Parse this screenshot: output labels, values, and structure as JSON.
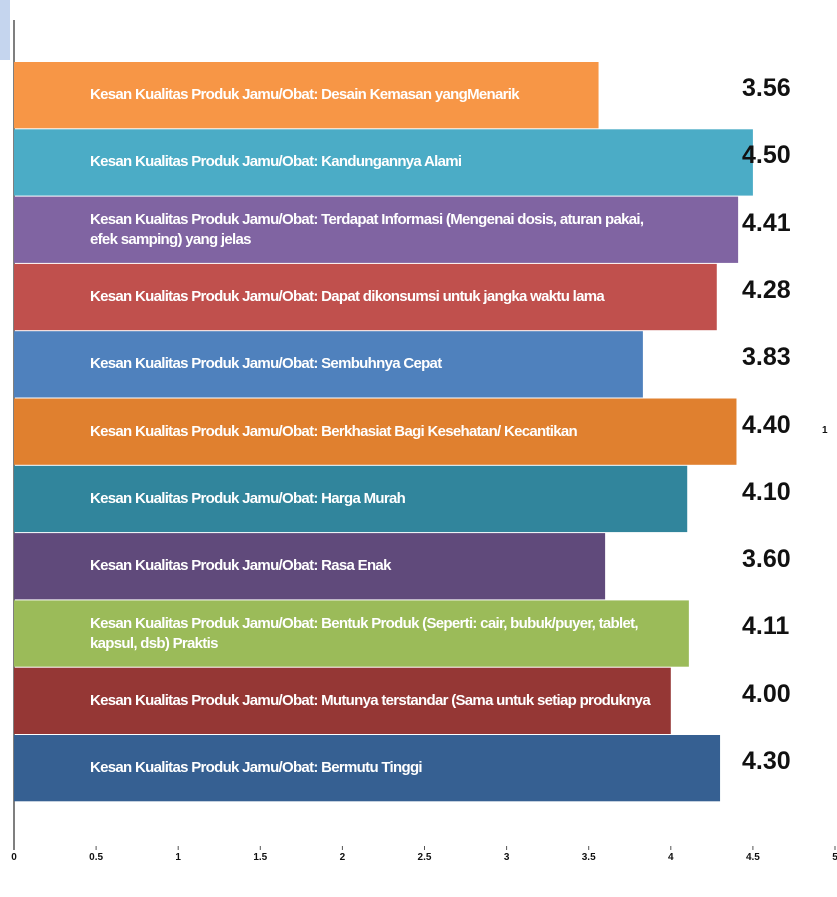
{
  "chart_data": {
    "type": "barh",
    "categories": [
      "Kesan Kualitas Produk Jamu/Obat: Desain Kemasan yangMenarik",
      "Kesan Kualitas Produk Jamu/Obat: Kandungannya Alami",
      "Kesan Kualitas Produk Jamu/Obat: Terdapat Informasi (Mengenai dosis, aturan pakai, efek samping) yang jelas",
      "Kesan Kualitas Produk Jamu/Obat: Dapat dikonsumsi untuk jangka waktu lama",
      "Kesan Kualitas Produk Jamu/Obat: Sembuhnya Cepat",
      "Kesan Kualitas Produk Jamu/Obat: Berkhasiat Bagi Kesehatan/ Kecantikan",
      "Kesan Kualitas Produk Jamu/Obat: Harga Murah",
      "Kesan Kualitas Produk Jamu/Obat: Rasa Enak",
      "Kesan Kualitas Produk Jamu/Obat: Bentuk Produk (Seperti: cair, bubuk/puyer, tablet, kapsul, dsb) Praktis",
      "Kesan Kualitas Produk Jamu/Obat: Mutunya terstandar (Sama untuk setiap produknya",
      "Kesan Kualitas Produk Jamu/Obat: Bermutu Tinggi"
    ],
    "values": [
      3.56,
      4.5,
      4.41,
      4.28,
      3.83,
      4.4,
      4.1,
      3.6,
      4.11,
      4.0,
      4.3
    ],
    "value_labels": [
      "3.56",
      "4.50",
      "4.41",
      "4.28",
      "3.83",
      "4.40",
      "4.10",
      "3.60",
      "4.11",
      "4.00",
      "4.30"
    ],
    "colors": [
      "#f79646",
      "#4bacc6",
      "#8064a2",
      "#c0504d",
      "#4f81bd",
      "#e0802f",
      "#31859c",
      "#604a7b",
      "#9bbb59",
      "#953735",
      "#366092"
    ],
    "xlim": [
      0,
      5
    ],
    "xticks": [
      0,
      0.5,
      1,
      1.5,
      2,
      2.5,
      3,
      3.5,
      4,
      4.5,
      5
    ],
    "annotation": "1"
  }
}
